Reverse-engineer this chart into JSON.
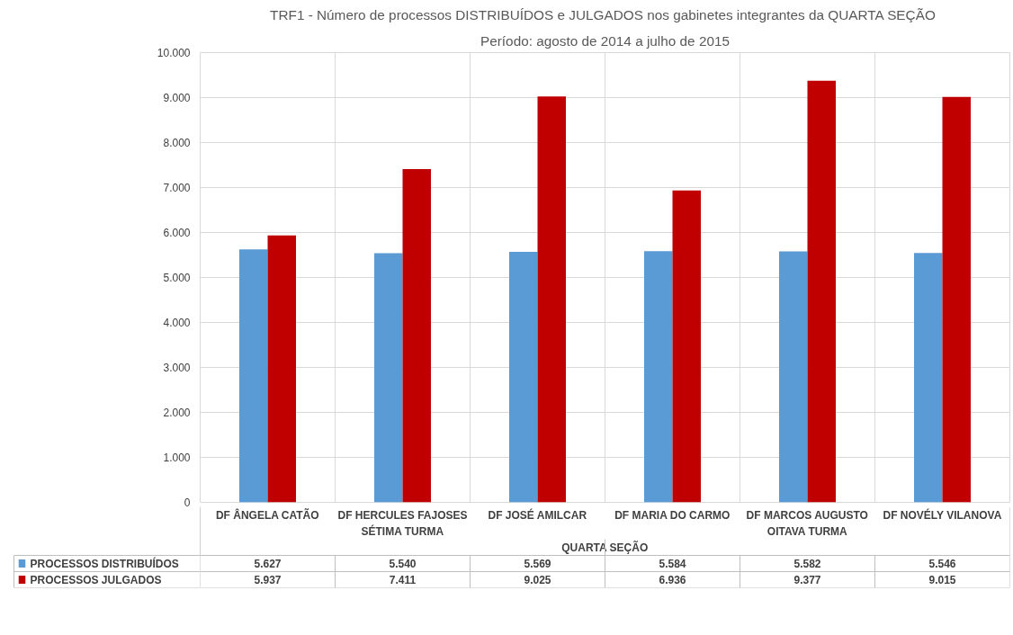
{
  "chart_data": {
    "type": "bar",
    "title": "TRF1 -  Número de processos DISTRIBUÍDOS e JULGADOS nos gabinetes integrantes da QUARTA SEÇÃO",
    "subtitle": "Período: agosto de 2014 a julho de 2015",
    "categories": [
      "DF ÂNGELA CATÃO",
      "DF HERCULES FAJOSES",
      "DF JOSÉ AMILCAR",
      "DF MARIA DO CARMO",
      "DF MARCOS AUGUSTO",
      "DF NOVÉLY VILANOVA"
    ],
    "series": [
      {
        "name": "PROCESSOS DISTRIBUÍDOS",
        "color": "#5b9bd5",
        "values": [
          5627,
          5540,
          5569,
          5584,
          5582,
          5546
        ],
        "value_labels": [
          "5.627",
          "5.540",
          "5.569",
          "5.584",
          "5.582",
          "5.546"
        ]
      },
      {
        "name": "PROCESSOS JULGADOS",
        "color": "#c00000",
        "values": [
          5937,
          7411,
          9025,
          6936,
          9377,
          9015
        ],
        "value_labels": [
          "5.937",
          "7.411",
          "9.025",
          "6.936",
          "9.377",
          "9.015"
        ]
      }
    ],
    "ylim": [
      0,
      10000
    ],
    "yticks": [
      0,
      {
        "value": 1000,
        "label": "1.000"
      },
      {
        "value": 2000,
        "label": "2.000"
      },
      {
        "value": 3000,
        "label": "3.000"
      },
      {
        "value": 4000,
        "label": "4.000"
      },
      {
        "value": 5000,
        "label": "5.000"
      },
      {
        "value": 6000,
        "label": "6.000"
      },
      {
        "value": 7000,
        "label": "7.000"
      },
      {
        "value": 8000,
        "label": "8.000"
      },
      {
        "value": 9000,
        "label": "9.000"
      },
      {
        "value": 10000,
        "label": "10.000"
      }
    ],
    "grid": true,
    "legend": "bottom",
    "annotations": [
      "SÉTIMA TURMA",
      "OITAVA TURMA",
      "QUARTA SEÇÃO"
    ]
  }
}
